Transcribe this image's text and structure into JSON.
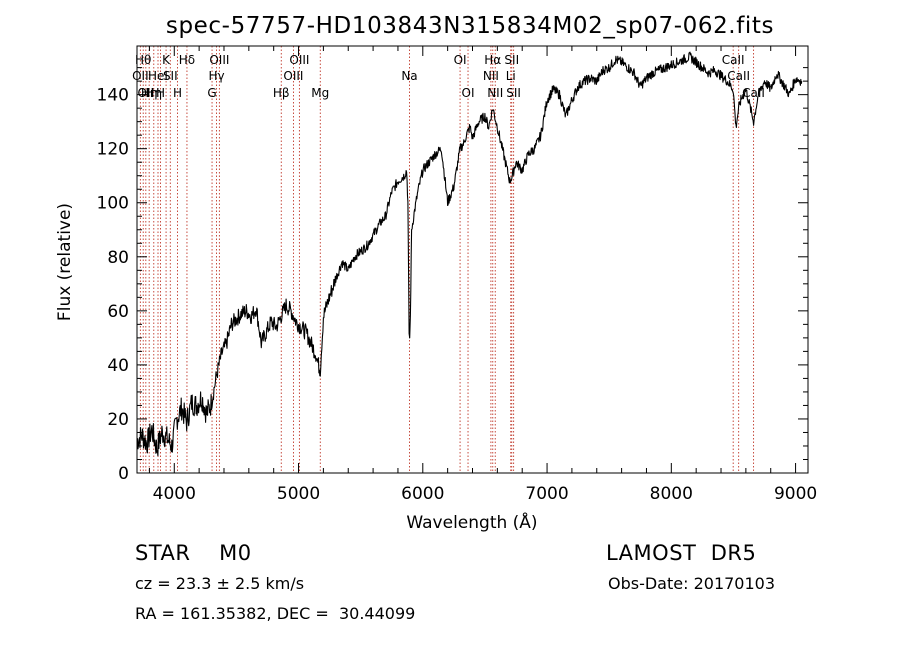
{
  "chart_data": {
    "type": "line",
    "title": "spec-57757-HD103843N315834M02_sp07-062.fits",
    "xlabel": "Wavelength (Å)",
    "ylabel": "Flux (relative)",
    "xlim": [
      3700,
      9100
    ],
    "ylim": [
      0,
      158
    ],
    "xticks": [
      4000,
      5000,
      6000,
      7000,
      8000,
      9000
    ],
    "yticks": [
      0,
      20,
      40,
      60,
      80,
      100,
      120,
      140
    ],
    "grid": false,
    "series": [
      {
        "x": [
          3700,
          3740,
          3780,
          3820,
          3860,
          3900,
          3940,
          3980,
          4020,
          4060,
          4100,
          4140,
          4180,
          4220,
          4260,
          4300,
          4340,
          4380,
          4420,
          4460,
          4500,
          4540,
          4580,
          4620,
          4660,
          4700,
          4740,
          4780,
          4820,
          4860,
          4900,
          4940,
          4980,
          5020,
          5060,
          5100,
          5140,
          5160,
          5175,
          5200,
          5240,
          5300,
          5350,
          5400,
          5450,
          5500,
          5550,
          5600,
          5650,
          5700,
          5750,
          5800,
          5850,
          5870,
          5880,
          5890,
          5895,
          5900,
          5910,
          5930,
          5960,
          6000,
          6050,
          6100,
          6150,
          6200,
          6250,
          6300,
          6330,
          6350,
          6380,
          6400,
          6450,
          6500,
          6530,
          6563,
          6600,
          6650,
          6700,
          6720,
          6750,
          6800,
          6850,
          6900,
          6950,
          7000,
          7050,
          7100,
          7150,
          7200,
          7250,
          7300,
          7350,
          7400,
          7450,
          7500,
          7550,
          7600,
          7650,
          7700,
          7750,
          7800,
          7850,
          7900,
          7950,
          8000,
          8050,
          8100,
          8150,
          8200,
          8250,
          8300,
          8350,
          8400,
          8450,
          8498,
          8520,
          8542,
          8560,
          8600,
          8662,
          8700,
          8750,
          8800,
          8850,
          8900,
          8950,
          9000,
          9050
        ],
        "y": [
          12,
          14,
          11,
          16,
          9,
          15,
          13,
          10,
          20,
          24,
          19,
          26,
          25,
          28,
          22,
          26,
          36,
          44,
          48,
          55,
          57,
          59,
          60,
          58,
          61,
          48,
          52,
          56,
          54,
          58,
          62,
          60,
          56,
          54,
          52,
          48,
          44,
          40,
          38,
          58,
          64,
          72,
          78,
          75,
          80,
          82,
          84,
          88,
          92,
          95,
          104,
          108,
          110,
          112,
          100,
          52,
          50,
          58,
          90,
          96,
          104,
          112,
          115,
          118,
          120,
          100,
          106,
          120,
          122,
          125,
          128,
          124,
          130,
          132,
          128,
          135,
          128,
          118,
          108,
          110,
          115,
          112,
          118,
          120,
          125,
          138,
          142,
          140,
          132,
          138,
          143,
          145,
          146,
          145,
          149,
          150,
          153,
          152,
          150,
          148,
          143,
          146,
          148,
          149,
          150,
          151,
          152,
          153,
          154,
          152,
          150,
          148,
          149,
          147,
          145,
          142,
          128,
          135,
          138,
          142,
          130,
          140,
          145,
          142,
          148,
          144,
          140,
          146,
          145
        ]
      }
    ],
    "line_markers": [
      {
        "w": 3727,
        "label": "OII",
        "row": 2
      },
      {
        "w": 3750,
        "label": "Hθ",
        "row": 1
      },
      {
        "w": 3771,
        "label": "OII",
        "row": 3
      },
      {
        "w": 3798,
        "label": "Hη",
        "row": 3
      },
      {
        "w": 3835,
        "label": "Hη",
        "row": 3
      },
      {
        "w": 3869,
        "label": "HeI",
        "row": 2
      },
      {
        "w": 3889,
        "label": "H",
        "row": 3
      },
      {
        "w": 3934,
        "label": "K",
        "row": 1
      },
      {
        "w": 3968,
        "label": "SII",
        "row": 2
      },
      {
        "w": 4026,
        "label": "H",
        "row": 3
      },
      {
        "w": 4102,
        "label": "Hδ",
        "row": 1
      },
      {
        "w": 4304,
        "label": "G",
        "row": 3
      },
      {
        "w": 4340,
        "label": "Hγ",
        "row": 2
      },
      {
        "w": 4363,
        "label": "OIII",
        "row": 1
      },
      {
        "w": 4861,
        "label": "Hβ",
        "row": 3
      },
      {
        "w": 4959,
        "label": "OIII",
        "row": 2
      },
      {
        "w": 5007,
        "label": "OIII",
        "row": 1
      },
      {
        "w": 5175,
        "label": "Mg",
        "row": 3
      },
      {
        "w": 5893,
        "label": "Na",
        "row": 2
      },
      {
        "w": 6300,
        "label": "OI",
        "row": 1
      },
      {
        "w": 6364,
        "label": "OI",
        "row": 3
      },
      {
        "w": 6548,
        "label": "NII",
        "row": 2
      },
      {
        "w": 6563,
        "label": "Hα",
        "row": 1
      },
      {
        "w": 6583,
        "label": "NII",
        "row": 3
      },
      {
        "w": 6708,
        "label": "Li",
        "row": 2
      },
      {
        "w": 6716,
        "label": "SII",
        "row": 1
      },
      {
        "w": 6731,
        "label": "SII",
        "row": 3
      },
      {
        "w": 8498,
        "label": "CaII",
        "row": 1
      },
      {
        "w": 8542,
        "label": "CaII",
        "row": 2
      },
      {
        "w": 8662,
        "label": "CaII",
        "row": 3
      }
    ]
  },
  "info": {
    "classification": "STAR    M0",
    "survey": "LAMOST  DR5",
    "redshift": "cz = 23.3 ± 2.5 km/s",
    "obs_date": "Obs-Date: 20170103",
    "coords": "RA = 161.35382, DEC =  30.44099"
  },
  "colors": {
    "marker": "#c0392b",
    "line": "#000000",
    "axis": "#000000"
  }
}
